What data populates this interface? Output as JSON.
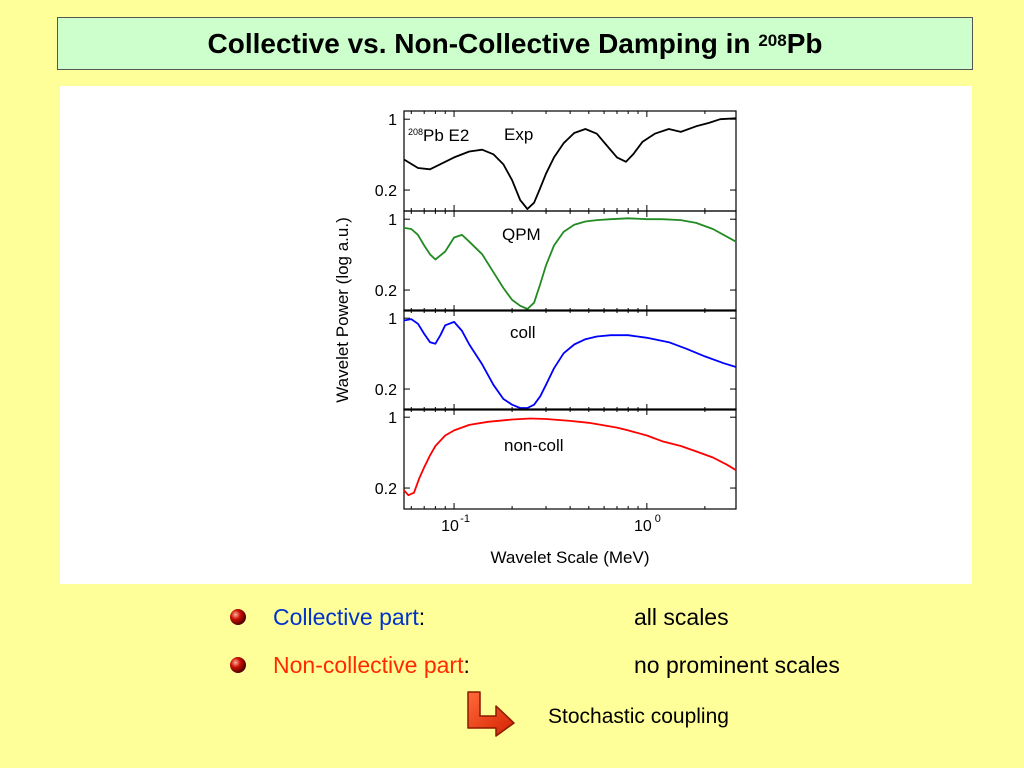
{
  "slide": {
    "title_main": "Collective vs. Non-Collective Damping in ",
    "title_sup": "208",
    "title_tail": "Pb"
  },
  "bullets": [
    {
      "label": "Collective part",
      "colon": ":",
      "value": "all scales",
      "label_color": "#0033cc"
    },
    {
      "label": "Non-collective part",
      "colon": ":",
      "value": "no prominent scales",
      "label_color": "#ff2a00"
    }
  ],
  "note": {
    "text": "Stochastic coupling",
    "icon": "turn-arrow-icon"
  },
  "chart_data": {
    "type": "line",
    "xlabel": "Wavelet Scale (MeV)",
    "ylabel": "Wavelet Power (log a.u.)",
    "x_scale": "log",
    "xlim": [
      0.055,
      2.9
    ],
    "x_ticks": [
      {
        "value": 0.1,
        "base": "10",
        "exp": "-1"
      },
      {
        "value": 1,
        "base": "10",
        "exp": "0"
      }
    ],
    "y_scale": "log",
    "ylim": [
      0.13,
      1.1
    ],
    "y_ticks": [
      {
        "value": 1,
        "label": "1"
      },
      {
        "value": 0.2,
        "label": "0.2"
      }
    ],
    "panels": [
      {
        "name": "Exp",
        "label": "Exp",
        "label_sup": "208",
        "label_prefix": "Pb E2",
        "color": "#000000",
        "x": [
          0.055,
          0.065,
          0.075,
          0.085,
          0.1,
          0.12,
          0.14,
          0.16,
          0.18,
          0.2,
          0.22,
          0.24,
          0.26,
          0.28,
          0.3,
          0.33,
          0.37,
          0.42,
          0.48,
          0.55,
          0.62,
          0.7,
          0.78,
          0.85,
          0.95,
          1.1,
          1.3,
          1.5,
          1.8,
          2.1,
          2.4,
          2.9
        ],
        "y": [
          0.4,
          0.33,
          0.32,
          0.36,
          0.42,
          0.48,
          0.5,
          0.45,
          0.36,
          0.25,
          0.16,
          0.13,
          0.15,
          0.21,
          0.29,
          0.42,
          0.58,
          0.73,
          0.8,
          0.72,
          0.55,
          0.42,
          0.38,
          0.45,
          0.6,
          0.72,
          0.8,
          0.75,
          0.85,
          0.92,
          1.0,
          1.02
        ]
      },
      {
        "name": "QPM",
        "label": "QPM",
        "color": "#228b22",
        "x": [
          0.055,
          0.06,
          0.065,
          0.07,
          0.075,
          0.08,
          0.09,
          0.1,
          0.11,
          0.12,
          0.14,
          0.16,
          0.18,
          0.2,
          0.22,
          0.24,
          0.26,
          0.28,
          0.3,
          0.33,
          0.37,
          0.42,
          0.48,
          0.55,
          0.65,
          0.8,
          1.0,
          1.2,
          1.5,
          1.8,
          2.2,
          2.9
        ],
        "y": [
          0.82,
          0.8,
          0.7,
          0.55,
          0.45,
          0.4,
          0.48,
          0.66,
          0.7,
          0.6,
          0.45,
          0.3,
          0.21,
          0.16,
          0.14,
          0.13,
          0.15,
          0.23,
          0.35,
          0.55,
          0.75,
          0.88,
          0.95,
          0.98,
          1.0,
          1.02,
          1.0,
          1.0,
          0.98,
          0.92,
          0.8,
          0.6
        ]
      },
      {
        "name": "coll",
        "label": "coll",
        "color": "#0000ff",
        "x": [
          0.055,
          0.06,
          0.065,
          0.07,
          0.075,
          0.08,
          0.085,
          0.09,
          0.1,
          0.11,
          0.12,
          0.14,
          0.16,
          0.18,
          0.2,
          0.22,
          0.24,
          0.26,
          0.28,
          0.3,
          0.33,
          0.37,
          0.42,
          0.48,
          0.55,
          0.65,
          0.8,
          1.0,
          1.3,
          1.6,
          2.0,
          2.5,
          2.9
        ],
        "y": [
          0.95,
          0.98,
          0.88,
          0.7,
          0.58,
          0.56,
          0.68,
          0.85,
          0.92,
          0.75,
          0.55,
          0.35,
          0.22,
          0.16,
          0.14,
          0.13,
          0.13,
          0.14,
          0.17,
          0.22,
          0.32,
          0.45,
          0.55,
          0.62,
          0.66,
          0.68,
          0.68,
          0.64,
          0.58,
          0.5,
          0.42,
          0.36,
          0.33
        ]
      },
      {
        "name": "non-coll",
        "label": "non-coll",
        "color": "#ff0000",
        "x": [
          0.055,
          0.058,
          0.062,
          0.066,
          0.07,
          0.075,
          0.08,
          0.09,
          0.1,
          0.12,
          0.15,
          0.2,
          0.25,
          0.3,
          0.4,
          0.5,
          0.6,
          0.7,
          0.8,
          1.0,
          1.2,
          1.5,
          1.8,
          2.2,
          2.6,
          2.9
        ],
        "y": [
          0.19,
          0.17,
          0.18,
          0.25,
          0.32,
          0.42,
          0.52,
          0.66,
          0.74,
          0.84,
          0.9,
          0.95,
          0.97,
          0.96,
          0.92,
          0.88,
          0.83,
          0.79,
          0.74,
          0.66,
          0.58,
          0.52,
          0.46,
          0.4,
          0.34,
          0.3
        ]
      }
    ]
  }
}
